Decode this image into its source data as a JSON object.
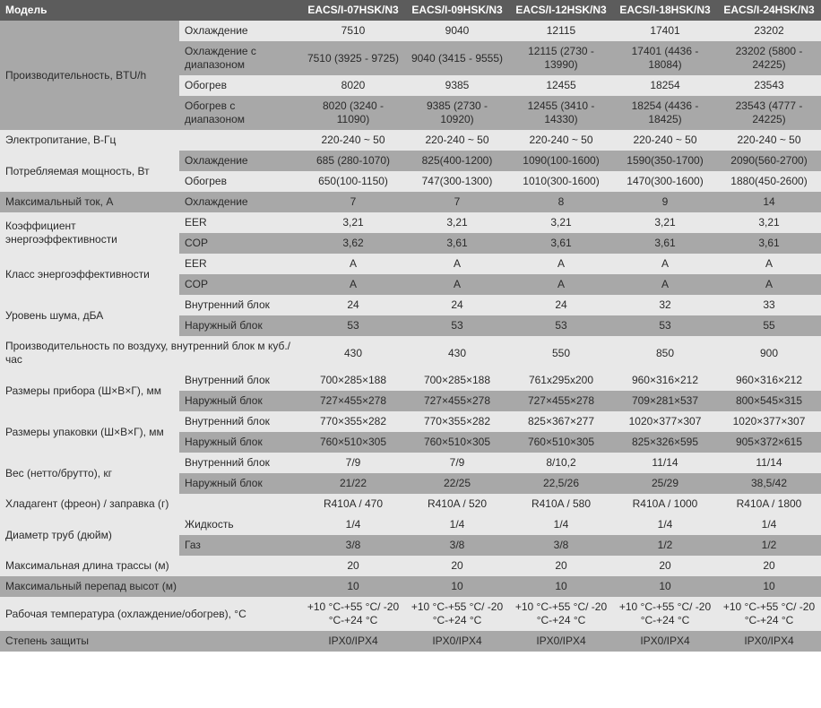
{
  "header": {
    "spec": "Модель",
    "models": [
      "EACS/I-07HSK/N3",
      "EACS/I-09HSK/N3",
      "EACS/I-12HSK/N3",
      "EACS/I-18HSK/N3",
      "EACS/I-24HSK/N3"
    ]
  },
  "groups": [
    {
      "label": "Производительность, BTU/h",
      "shade": "dark",
      "rows": [
        {
          "sub": "Охлаждение",
          "shade": "light",
          "vals": [
            "7510",
            "9040",
            "12115",
            "17401",
            "23202"
          ]
        },
        {
          "sub": "Охлаждение с диапазоном",
          "shade": "dark",
          "vals": [
            "7510 (3925 - 9725)",
            "9040 (3415 - 9555)",
            "12115 (2730 - 13990)",
            "17401 (4436 - 18084)",
            "23202 (5800 - 24225)"
          ]
        },
        {
          "sub": "Обогрев",
          "shade": "light",
          "vals": [
            "8020",
            "9385",
            "12455",
            "18254",
            "23543"
          ]
        },
        {
          "sub": "Обогрев с диапазоном",
          "shade": "dark",
          "vals": [
            "8020 (3240 - 11090)",
            "9385 (2730 - 10920)",
            "12455 (3410 - 14330)",
            "18254 (4436 - 18425)",
            "23543 (4777 - 24225)"
          ]
        }
      ]
    },
    {
      "label": "Электропитание, В-Гц",
      "shade": "light",
      "rows": [
        {
          "sub": "",
          "shade": "light",
          "vals": [
            "220-240 ~ 50",
            "220-240 ~ 50",
            "220-240 ~ 50",
            "220-240 ~ 50",
            "220-240 ~ 50"
          ]
        }
      ]
    },
    {
      "label": "Потребляемая мощность, Вт",
      "shade": "light",
      "rows": [
        {
          "sub": "Охлаждение",
          "shade": "dark",
          "vals": [
            "685 (280-1070)",
            "825(400-1200)",
            "1090(100-1600)",
            "1590(350-1700)",
            "2090(560-2700)"
          ]
        },
        {
          "sub": "Обогрев",
          "shade": "light",
          "vals": [
            "650(100-1150)",
            "747(300-1300)",
            "1010(300-1600)",
            "1470(300-1600)",
            "1880(450-2600)"
          ]
        }
      ]
    },
    {
      "label": "Максимальный ток, А",
      "shade": "dark",
      "rows": [
        {
          "sub": "Охлаждение",
          "shade": "dark",
          "vals": [
            "7",
            "7",
            "8",
            "9",
            "14"
          ]
        }
      ]
    },
    {
      "label": "Коэффициент энергоэффективности",
      "shade": "light",
      "rows": [
        {
          "sub": "EER",
          "shade": "light",
          "vals": [
            "3,21",
            "3,21",
            "3,21",
            "3,21",
            "3,21"
          ]
        },
        {
          "sub": "COP",
          "shade": "dark",
          "vals": [
            "3,62",
            "3,61",
            "3,61",
            "3,61",
            "3,61"
          ]
        }
      ]
    },
    {
      "label": "Класс энергоэффективности",
      "shade": "light",
      "rows": [
        {
          "sub": "EER",
          "shade": "light",
          "vals": [
            "A",
            "A",
            "A",
            "A",
            "A"
          ]
        },
        {
          "sub": "COP",
          "shade": "dark",
          "vals": [
            "A",
            "A",
            "A",
            "A",
            "A"
          ]
        }
      ]
    },
    {
      "label": "Уровень шума, дБА",
      "shade": "light",
      "rows": [
        {
          "sub": "Внутренний блок",
          "shade": "light",
          "vals": [
            "24",
            "24",
            "24",
            "32",
            "33"
          ]
        },
        {
          "sub": "Наружный блок",
          "shade": "dark",
          "vals": [
            "53",
            "53",
            "53",
            "53",
            "55"
          ]
        }
      ]
    },
    {
      "label": "Производительность по воздуху, внутренний блок м куб./час",
      "spanSub": true,
      "shade": "light",
      "rows": [
        {
          "sub": "",
          "shade": "light",
          "vals": [
            "430",
            "430",
            "550",
            "850",
            "900"
          ]
        }
      ]
    },
    {
      "label": "Размеры прибора (Ш×В×Г), мм",
      "shade": "light",
      "rows": [
        {
          "sub": "Внутренний блок",
          "shade": "light",
          "vals": [
            "700×285×188",
            "700×285×188",
            "761x295x200",
            "960×316×212",
            "960×316×212"
          ]
        },
        {
          "sub": "Наружный блок",
          "shade": "dark",
          "vals": [
            "727×455×278",
            "727×455×278",
            "727×455×278",
            "709×281×537",
            "800×545×315"
          ]
        }
      ]
    },
    {
      "label": "Размеры упаковки (Ш×В×Г), мм",
      "shade": "light",
      "rows": [
        {
          "sub": "Внутренний блок",
          "shade": "light",
          "vals": [
            "770×355×282",
            "770×355×282",
            "825×367×277",
            "1020×377×307",
            "1020×377×307"
          ]
        },
        {
          "sub": "Наружный блок",
          "shade": "dark",
          "vals": [
            "760×510×305",
            "760×510×305",
            "760×510×305",
            "825×326×595",
            "905×372×615"
          ]
        }
      ]
    },
    {
      "label": "Вес (нетто/брутто), кг",
      "shade": "light",
      "rows": [
        {
          "sub": "Внутренний блок",
          "shade": "light",
          "vals": [
            "7/9",
            "7/9",
            "8/10,2",
            "11/14",
            "11/14"
          ]
        },
        {
          "sub": "Наружный блок",
          "shade": "dark",
          "vals": [
            "21/22",
            "22/25",
            "22,5/26",
            "25/29",
            "38,5/42"
          ]
        }
      ]
    },
    {
      "label": "Хладагент (фреон) / заправка (г)",
      "spanSub": true,
      "shade": "light",
      "rows": [
        {
          "sub": "",
          "shade": "light",
          "vals": [
            "R410A / 470",
            "R410A / 520",
            "R410A / 580",
            "R410A / 1000",
            "R410A / 1800"
          ]
        }
      ]
    },
    {
      "label": "Диаметр труб (дюйм)",
      "shade": "light",
      "rows": [
        {
          "sub": "Жидкость",
          "shade": "light",
          "vals": [
            "1/4",
            "1/4",
            "1/4",
            "1/4",
            "1/4"
          ]
        },
        {
          "sub": "Газ",
          "shade": "dark",
          "vals": [
            "3/8",
            "3/8",
            "3/8",
            "1/2",
            "1/2"
          ]
        }
      ]
    },
    {
      "label": "Максимальная длина трассы (м)",
      "spanSub": true,
      "shade": "light",
      "rows": [
        {
          "sub": "",
          "shade": "light",
          "vals": [
            "20",
            "20",
            "20",
            "20",
            "20"
          ]
        }
      ]
    },
    {
      "label": "Максимальный перепад высот (м)",
      "spanSub": true,
      "shade": "dark",
      "rows": [
        {
          "sub": "",
          "shade": "dark",
          "vals": [
            "10",
            "10",
            "10",
            "10",
            "10"
          ]
        }
      ]
    },
    {
      "label": "Рабочая температура (охлаждение/обогрев), °C",
      "spanSub": true,
      "shade": "light",
      "rows": [
        {
          "sub": "",
          "shade": "light",
          "vals": [
            "+10 °C-+55 °C/ -20 °C-+24 °C",
            "+10 °C-+55 °C/ -20 °C-+24 °C",
            "+10 °C-+55 °C/ -20 °C-+24 °C",
            "+10 °C-+55 °C/ -20 °C-+24 °C",
            "+10 °C-+55 °C/ -20 °C-+24 °C"
          ]
        }
      ]
    },
    {
      "label": "Степень защиты",
      "spanSub": true,
      "shade": "dark",
      "rows": [
        {
          "sub": "",
          "shade": "dark",
          "vals": [
            "IPX0/IPX4",
            "IPX0/IPX4",
            "IPX0/IPX4",
            "IPX0/IPX4",
            "IPX0/IPX4"
          ]
        }
      ]
    }
  ]
}
